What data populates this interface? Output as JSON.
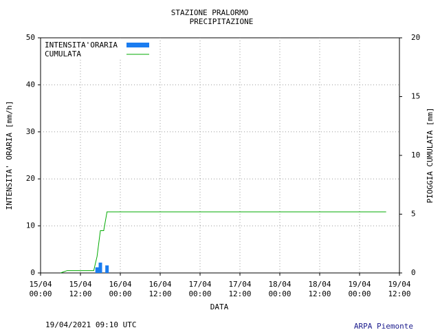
{
  "chart_data": {
    "type": "bar-line",
    "title": "STAZIONE PRALORMO",
    "subtitle": "PRECIPITAZIONE",
    "x_label": "DATA",
    "y_label": "INTENSITA' ORARIA [mm/h]",
    "y2_label": "PIOGGIA CUMULATA [mm]",
    "timestamp": "19/04/2021 09:10 UTC",
    "credit": "ARPA Piemonte",
    "grid": true,
    "legend": "upper left",
    "xlim": [
      "15/04 00:00",
      "19/04 12:00"
    ],
    "xticks": [
      "15/04 00:00",
      "15/04 12:00",
      "16/04 00:00",
      "16/04 12:00",
      "17/04 00:00",
      "17/04 12:00",
      "18/04 00:00",
      "18/04 12:00",
      "19/04 00:00",
      "19/04 12:00"
    ],
    "ylim": [
      0,
      50
    ],
    "yticks": [
      0,
      10,
      20,
      30,
      40,
      50
    ],
    "y2lim": [
      0,
      20
    ],
    "y2ticks": [
      0,
      5,
      10,
      15,
      20
    ],
    "series": [
      {
        "name": "INTENSITA'ORARIA",
        "type": "bar",
        "color": "#1a7cf0",
        "x": [
          "15/04 17:00",
          "15/04 18:00",
          "15/04 19:00",
          "15/04 20:00"
        ],
        "values": [
          1.2,
          2.2,
          0,
          1.6
        ]
      },
      {
        "name": "CUMULATA",
        "type": "line",
        "axis": "y2",
        "color": "#00aa00",
        "x": [
          "15/04 06:00",
          "15/04 08:00",
          "15/04 16:00",
          "15/04 17:00",
          "15/04 18:00",
          "15/04 19:00",
          "15/04 20:00",
          "19/04 08:00"
        ],
        "values": [
          0,
          0.2,
          0.2,
          1.4,
          3.6,
          3.6,
          5.2,
          5.2
        ]
      }
    ]
  }
}
